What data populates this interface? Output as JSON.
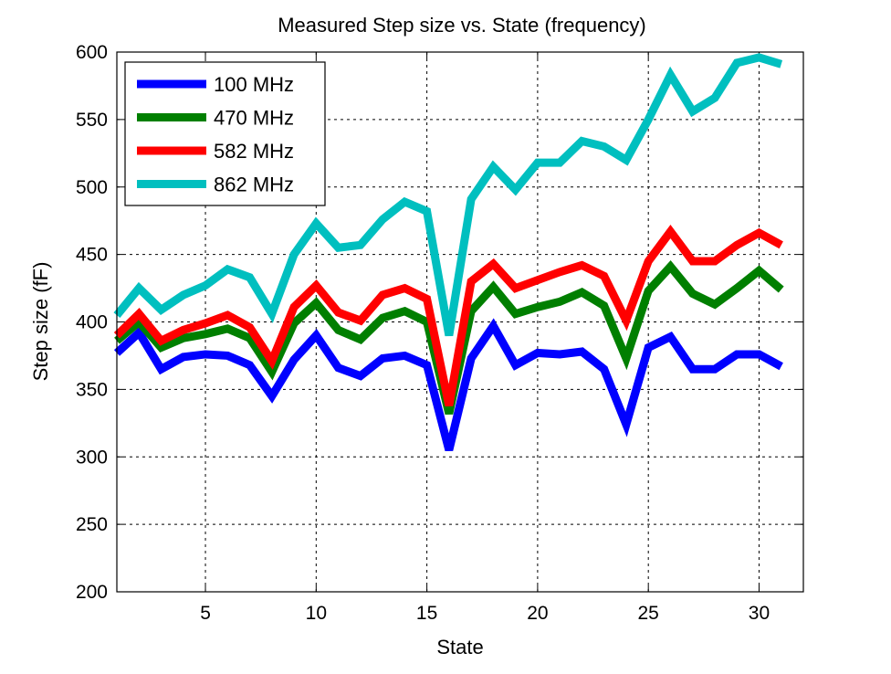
{
  "chart_data": {
    "type": "line",
    "title": "Measured Step size vs. State (frequency)",
    "xlabel": "State",
    "ylabel": "Step size (fF)",
    "xlim": [
      1,
      32
    ],
    "ylim": [
      200,
      600
    ],
    "xticks": [
      5,
      10,
      15,
      20,
      25,
      30
    ],
    "yticks": [
      200,
      250,
      300,
      350,
      400,
      450,
      500,
      550,
      600
    ],
    "grid": true,
    "legend_position": "top-left",
    "x": [
      1,
      2,
      3,
      4,
      5,
      6,
      7,
      8,
      9,
      10,
      11,
      12,
      13,
      14,
      15,
      16,
      17,
      18,
      19,
      20,
      21,
      22,
      23,
      24,
      25,
      26,
      27,
      28,
      29,
      30,
      31
    ],
    "series": [
      {
        "name": "100 MHz",
        "color": "#0000ff",
        "values": [
          377,
          392,
          365,
          374,
          376,
          375,
          368,
          345,
          372,
          390,
          366,
          360,
          373,
          375,
          368,
          305,
          373,
          397,
          368,
          377,
          376,
          378,
          365,
          324,
          381,
          389,
          365,
          365,
          376,
          376,
          367
        ]
      },
      {
        "name": "470 MHz",
        "color": "#007f00",
        "values": [
          386,
          400,
          381,
          388,
          391,
          395,
          388,
          363,
          399,
          414,
          394,
          387,
          403,
          408,
          400,
          332,
          408,
          426,
          406,
          411,
          415,
          422,
          412,
          373,
          423,
          441,
          421,
          413,
          425,
          438,
          424
        ]
      },
      {
        "name": "582 MHz",
        "color": "#ff0000",
        "values": [
          390,
          406,
          386,
          394,
          399,
          405,
          396,
          371,
          411,
          427,
          407,
          401,
          420,
          425,
          417,
          338,
          430,
          443,
          425,
          431,
          437,
          442,
          434,
          401,
          445,
          467,
          445,
          445,
          457,
          466,
          457
        ]
      },
      {
        "name": "862 MHz",
        "color": "#00bfbf",
        "values": [
          405,
          425,
          409,
          420,
          427,
          439,
          433,
          406,
          450,
          473,
          455,
          457,
          476,
          489,
          482,
          390,
          491,
          515,
          498,
          518,
          518,
          534,
          530,
          520,
          550,
          583,
          556,
          566,
          592,
          596,
          591
        ]
      }
    ]
  }
}
